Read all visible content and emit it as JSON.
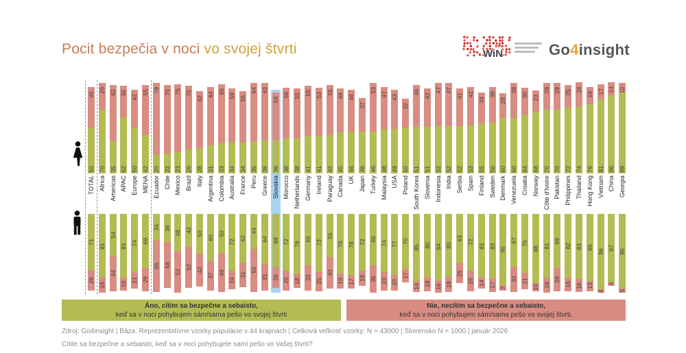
{
  "title": {
    "part1": "Pocit bezpečia v noci ",
    "part2": "vo svojej štvrti"
  },
  "logos": {
    "win": "WiN",
    "go4insight": {
      "go": "Go",
      "four": "4",
      "insight": "insight"
    }
  },
  "icons": {
    "top_row": "female-pictogram",
    "bottom_row": "male-pictogram"
  },
  "colors": {
    "green": "#b3bc52",
    "red": "#d98c81",
    "highlight": "#a9d3ee",
    "title1": "#c97d52",
    "title2": "#cfa23b",
    "value_text": "#3d3d3d",
    "label_text": "#1f1f1f",
    "footer_text": "#8a8a8a",
    "logo_dark": "#55565a",
    "logo_orange": "#f0a233",
    "win_red": "#d6392e"
  },
  "chart_data": {
    "type": "bar",
    "subtype": "mirrored stacked percentage bars (top = women, bottom = men)",
    "ylim": [
      0,
      100
    ],
    "grid": false,
    "value_labels_shown": true,
    "legend_position": "bottom",
    "highlight": "Slovakia",
    "separators": {
      "before": [
        "TOTAL"
      ],
      "after": [
        "TOTAL",
        "MENA"
      ]
    },
    "categories": [
      "TOTAL",
      "Africa",
      "Americas",
      "APAC",
      "Europe",
      "MENA",
      "Ecuador",
      "Chile",
      "Mexico",
      "Brazil",
      "Italy",
      "Argentina",
      "Colombia",
      "Australia",
      "France",
      "Peru",
      "Greece",
      "Slovakia",
      "Morocco",
      "Netherlands",
      "Germany",
      "Ireland",
      "Paraguay",
      "Canada",
      "UK",
      "Japan",
      "Turkey",
      "Malaysia",
      "USA",
      "Poland",
      "South Korea",
      "Slovenia",
      "Indonesia",
      "India",
      "Serbia",
      "Spain",
      "Finland",
      "Sweden",
      "Denmark",
      "Venezuela",
      "Croatia",
      "Norway",
      "Côte d'Ivoire",
      "Pakistan",
      "Philippines",
      "Thailand",
      "Hong Kong",
      "Vietnam",
      "China",
      "Georgia"
    ],
    "women": {
      "yes": [
        50,
        70,
        35,
        62,
        50,
        42,
        20,
        22,
        23,
        26,
        28,
        31,
        33,
        34,
        34,
        35,
        36,
        36,
        38,
        38,
        41,
        41,
        42,
        45,
        46,
        46,
        46,
        48,
        49,
        50,
        51,
        51,
        52,
        52,
        52,
        53,
        55,
        56,
        60,
        60,
        64,
        68,
        70,
        70,
        72,
        74,
        76,
        81,
        86,
        89
      ],
      "no": [
        45,
        29,
        62,
        34,
        42,
        55,
        79,
        75,
        75,
        70,
        62,
        64,
        65,
        59,
        56,
        64,
        63,
        53,
        56,
        55,
        55,
        53,
        55,
        48,
        46,
        37,
        53,
        47,
        43,
        32,
        46,
        42,
        47,
        47,
        41,
        42,
        34,
        39,
        28,
        39,
        30,
        23,
        29,
        29,
        25,
        26,
        19,
        17,
        14,
        10
      ]
    },
    "men": {
      "yes": [
        71,
        81,
        54,
        81,
        74,
        69,
        34,
        36,
        48,
        42,
        50,
        60,
        50,
        72,
        62,
        44,
        64,
        68,
        72,
        76,
        65,
        73,
        55,
        76,
        78,
        72,
        65,
        74,
        77,
        70,
        85,
        80,
        84,
        80,
        63,
        72,
        81,
        82,
        90,
        67,
        75,
        88,
        81,
        69,
        82,
        83,
        85,
        96,
        87,
        95
      ],
      "no": [
        26,
        19,
        44,
        16,
        21,
        29,
        65,
        58,
        52,
        52,
        42,
        37,
        49,
        24,
        31,
        55,
        33,
        26,
        25,
        18,
        32,
        25,
        40,
        19,
        17,
        19,
        35,
        23,
        20,
        17,
        14,
        18,
        16,
        19,
        25,
        26,
        14,
        17,
        7,
        32,
        21,
        10,
        19,
        29,
        16,
        16,
        13,
        4,
        4,
        5
      ]
    }
  },
  "legend": {
    "yes": {
      "line1": "Áno, cítim sa bezpečne a sebaisto,",
      "line2": "keď sa v noci pohybujem sám/sama pešo vo svojej štvrti"
    },
    "no": {
      "line1": "Nie, necítim sa bezpečne a sebaisto,",
      "line2": "keď sa v noci pohybujem sám/sama pešo vo svojej štvrti."
    }
  },
  "footer": {
    "source": "Zdroj: Go4insight | Báza: Reprezentatívne vzorky populácie v 44 krajinách | Celková veľkosť vzorky: N = 43000 | Slovensko N = 1000 | január 2026",
    "question": "Cítite sa bezpečne a sebaisto, keď sa v noci pohybujete sami pešo vo Vašej štvrti?"
  }
}
